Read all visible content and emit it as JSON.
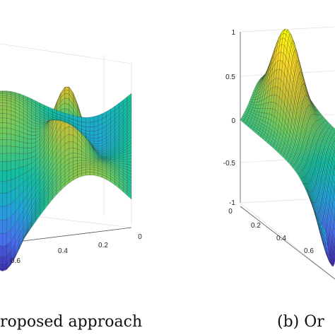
{
  "panels": [
    {
      "caption": "roposed approach",
      "chart_data": {
        "type": "surface",
        "title": "",
        "xlabel": "",
        "ylabel": "",
        "zlabel": "",
        "x_ticks": [
          "0.6",
          "0.4",
          "0.2",
          "0"
        ],
        "z_ticks": [],
        "grid": true,
        "surface": "approximated surface: ridge rising to a peak near x ≈ 0.45, valley in the foreground"
      }
    },
    {
      "caption": "(b) Or",
      "chart_data": {
        "type": "surface",
        "title": "",
        "xlabel": "",
        "ylabel": "",
        "zlabel": "",
        "z_ticks": [
          "1",
          "0.5",
          "0",
          "-0.5",
          "-1"
        ],
        "x_ticks": [
          "0",
          "0.2",
          "0.4",
          "0.6"
        ],
        "zlim": [
          -1,
          1
        ],
        "grid": true,
        "surface": "original surface: single peak near z ≈ 1, falling below zero toward the right edge"
      }
    }
  ],
  "colormap": [
    "#3e26a8",
    "#4772f0",
    "#1fa6d9",
    "#12bea0",
    "#6fcb5e",
    "#c6c034",
    "#f9d52a",
    "#f9fb0e"
  ]
}
